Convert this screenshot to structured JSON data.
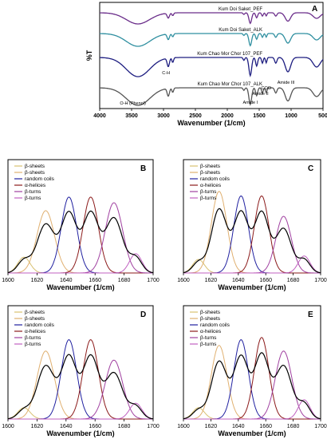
{
  "chart_data": [
    {
      "type": "line",
      "panel": "A",
      "ylabel": "%T",
      "xlabel": "Wavenumber (1/cm)",
      "xlim": [
        4000,
        500
      ],
      "xticks": [
        "4000",
        "3500",
        "3000",
        "2500",
        "2000",
        "1500",
        "1000",
        "500"
      ],
      "series": [
        {
          "name": "Kum Doi Saket_PEF",
          "color": "#6a2d8a"
        },
        {
          "name": "Kum Doi Saket_ALK",
          "color": "#2f8fa0"
        },
        {
          "name": "Kum Chao Mor Chor 107_PEF",
          "color": "#1d1d80"
        },
        {
          "name": "Kum Chao Mor Chor 107_ALK",
          "color": "#555555"
        }
      ],
      "annotations": [
        "O-H (Phenol)",
        "C-H",
        "Amide I",
        "Amide II",
        "COO",
        "Amide III"
      ]
    },
    {
      "type": "area",
      "panel": "B",
      "xlabel": "Wavenumber (1/cm)",
      "xlim": [
        1600,
        1700
      ],
      "xticks": [
        "1600",
        "1620",
        "1640",
        "1660",
        "1680",
        "1700"
      ],
      "legend": [
        "β-sheets",
        "β-sheets",
        "random coils",
        "α-helices",
        "β-turns",
        "β-turns"
      ],
      "peaks": [
        {
          "center": 1611,
          "height": 0.14,
          "width": 6,
          "color": "#d8c070"
        },
        {
          "center": 1626,
          "height": 0.55,
          "width": 8.5,
          "color": "#e0b070"
        },
        {
          "center": 1642,
          "height": 0.67,
          "width": 7.5,
          "color": "#2020a0"
        },
        {
          "center": 1657,
          "height": 0.67,
          "width": 7.5,
          "color": "#8b1a1a"
        },
        {
          "center": 1673,
          "height": 0.62,
          "width": 8.5,
          "color": "#a040a0"
        },
        {
          "center": 1688,
          "height": 0.17,
          "width": 6,
          "color": "#c060c0"
        }
      ]
    },
    {
      "type": "area",
      "panel": "C",
      "xlabel": "Wavenumber (1/cm)",
      "xlim": [
        1600,
        1700
      ],
      "xticks": [
        "1600",
        "1620",
        "1640",
        "1660",
        "1680",
        "1700"
      ],
      "legend": [
        "β-sheets",
        "β-sheets",
        "random coils",
        "α-helices",
        "β-turns",
        "β-turns"
      ],
      "peaks": [
        {
          "center": 1611,
          "height": 0.12,
          "width": 6,
          "color": "#d8c070"
        },
        {
          "center": 1626,
          "height": 0.72,
          "width": 8,
          "color": "#e0b070"
        },
        {
          "center": 1642,
          "height": 0.68,
          "width": 7.5,
          "color": "#2020a0"
        },
        {
          "center": 1657,
          "height": 0.68,
          "width": 7.5,
          "color": "#8b1a1a"
        },
        {
          "center": 1673,
          "height": 0.5,
          "width": 8,
          "color": "#a040a0"
        },
        {
          "center": 1688,
          "height": 0.15,
          "width": 6,
          "color": "#c060c0"
        }
      ]
    },
    {
      "type": "area",
      "panel": "D",
      "xlabel": "Wavenumber (1/cm)",
      "xlim": [
        1600,
        1700
      ],
      "xticks": [
        "1600",
        "1620",
        "1640",
        "1660",
        "1680",
        "1700"
      ],
      "legend": [
        "β-sheets",
        "β-sheets",
        "random coils",
        "α-helices",
        "β-turns",
        "β-turns"
      ],
      "peaks": [
        {
          "center": 1611,
          "height": 0.1,
          "width": 6,
          "color": "#d8c070"
        },
        {
          "center": 1626,
          "height": 0.6,
          "width": 8.5,
          "color": "#e0b070"
        },
        {
          "center": 1642,
          "height": 0.7,
          "width": 7.5,
          "color": "#2020a0"
        },
        {
          "center": 1657,
          "height": 0.7,
          "width": 7.5,
          "color": "#8b1a1a"
        },
        {
          "center": 1673,
          "height": 0.52,
          "width": 8.5,
          "color": "#a040a0"
        },
        {
          "center": 1688,
          "height": 0.14,
          "width": 6,
          "color": "#c060c0"
        }
      ]
    },
    {
      "type": "area",
      "panel": "E",
      "xlabel": "Wavenumber (1/cm)",
      "xlim": [
        1600,
        1700
      ],
      "xticks": [
        "1600",
        "1620",
        "1640",
        "1660",
        "1680",
        "1700"
      ],
      "legend": [
        "β-sheets",
        "β-sheets",
        "random coils",
        "α-helices",
        "β-turns",
        "β-turns"
      ],
      "peaks": [
        {
          "center": 1611,
          "height": 0.1,
          "width": 6,
          "color": "#d8c070"
        },
        {
          "center": 1626,
          "height": 0.65,
          "width": 8,
          "color": "#e0b070"
        },
        {
          "center": 1642,
          "height": 0.7,
          "width": 7.5,
          "color": "#2020a0"
        },
        {
          "center": 1657,
          "height": 0.72,
          "width": 7.5,
          "color": "#8b1a1a"
        },
        {
          "center": 1673,
          "height": 0.6,
          "width": 8.5,
          "color": "#a040a0"
        },
        {
          "center": 1688,
          "height": 0.17,
          "width": 6,
          "color": "#c060c0"
        }
      ]
    }
  ]
}
